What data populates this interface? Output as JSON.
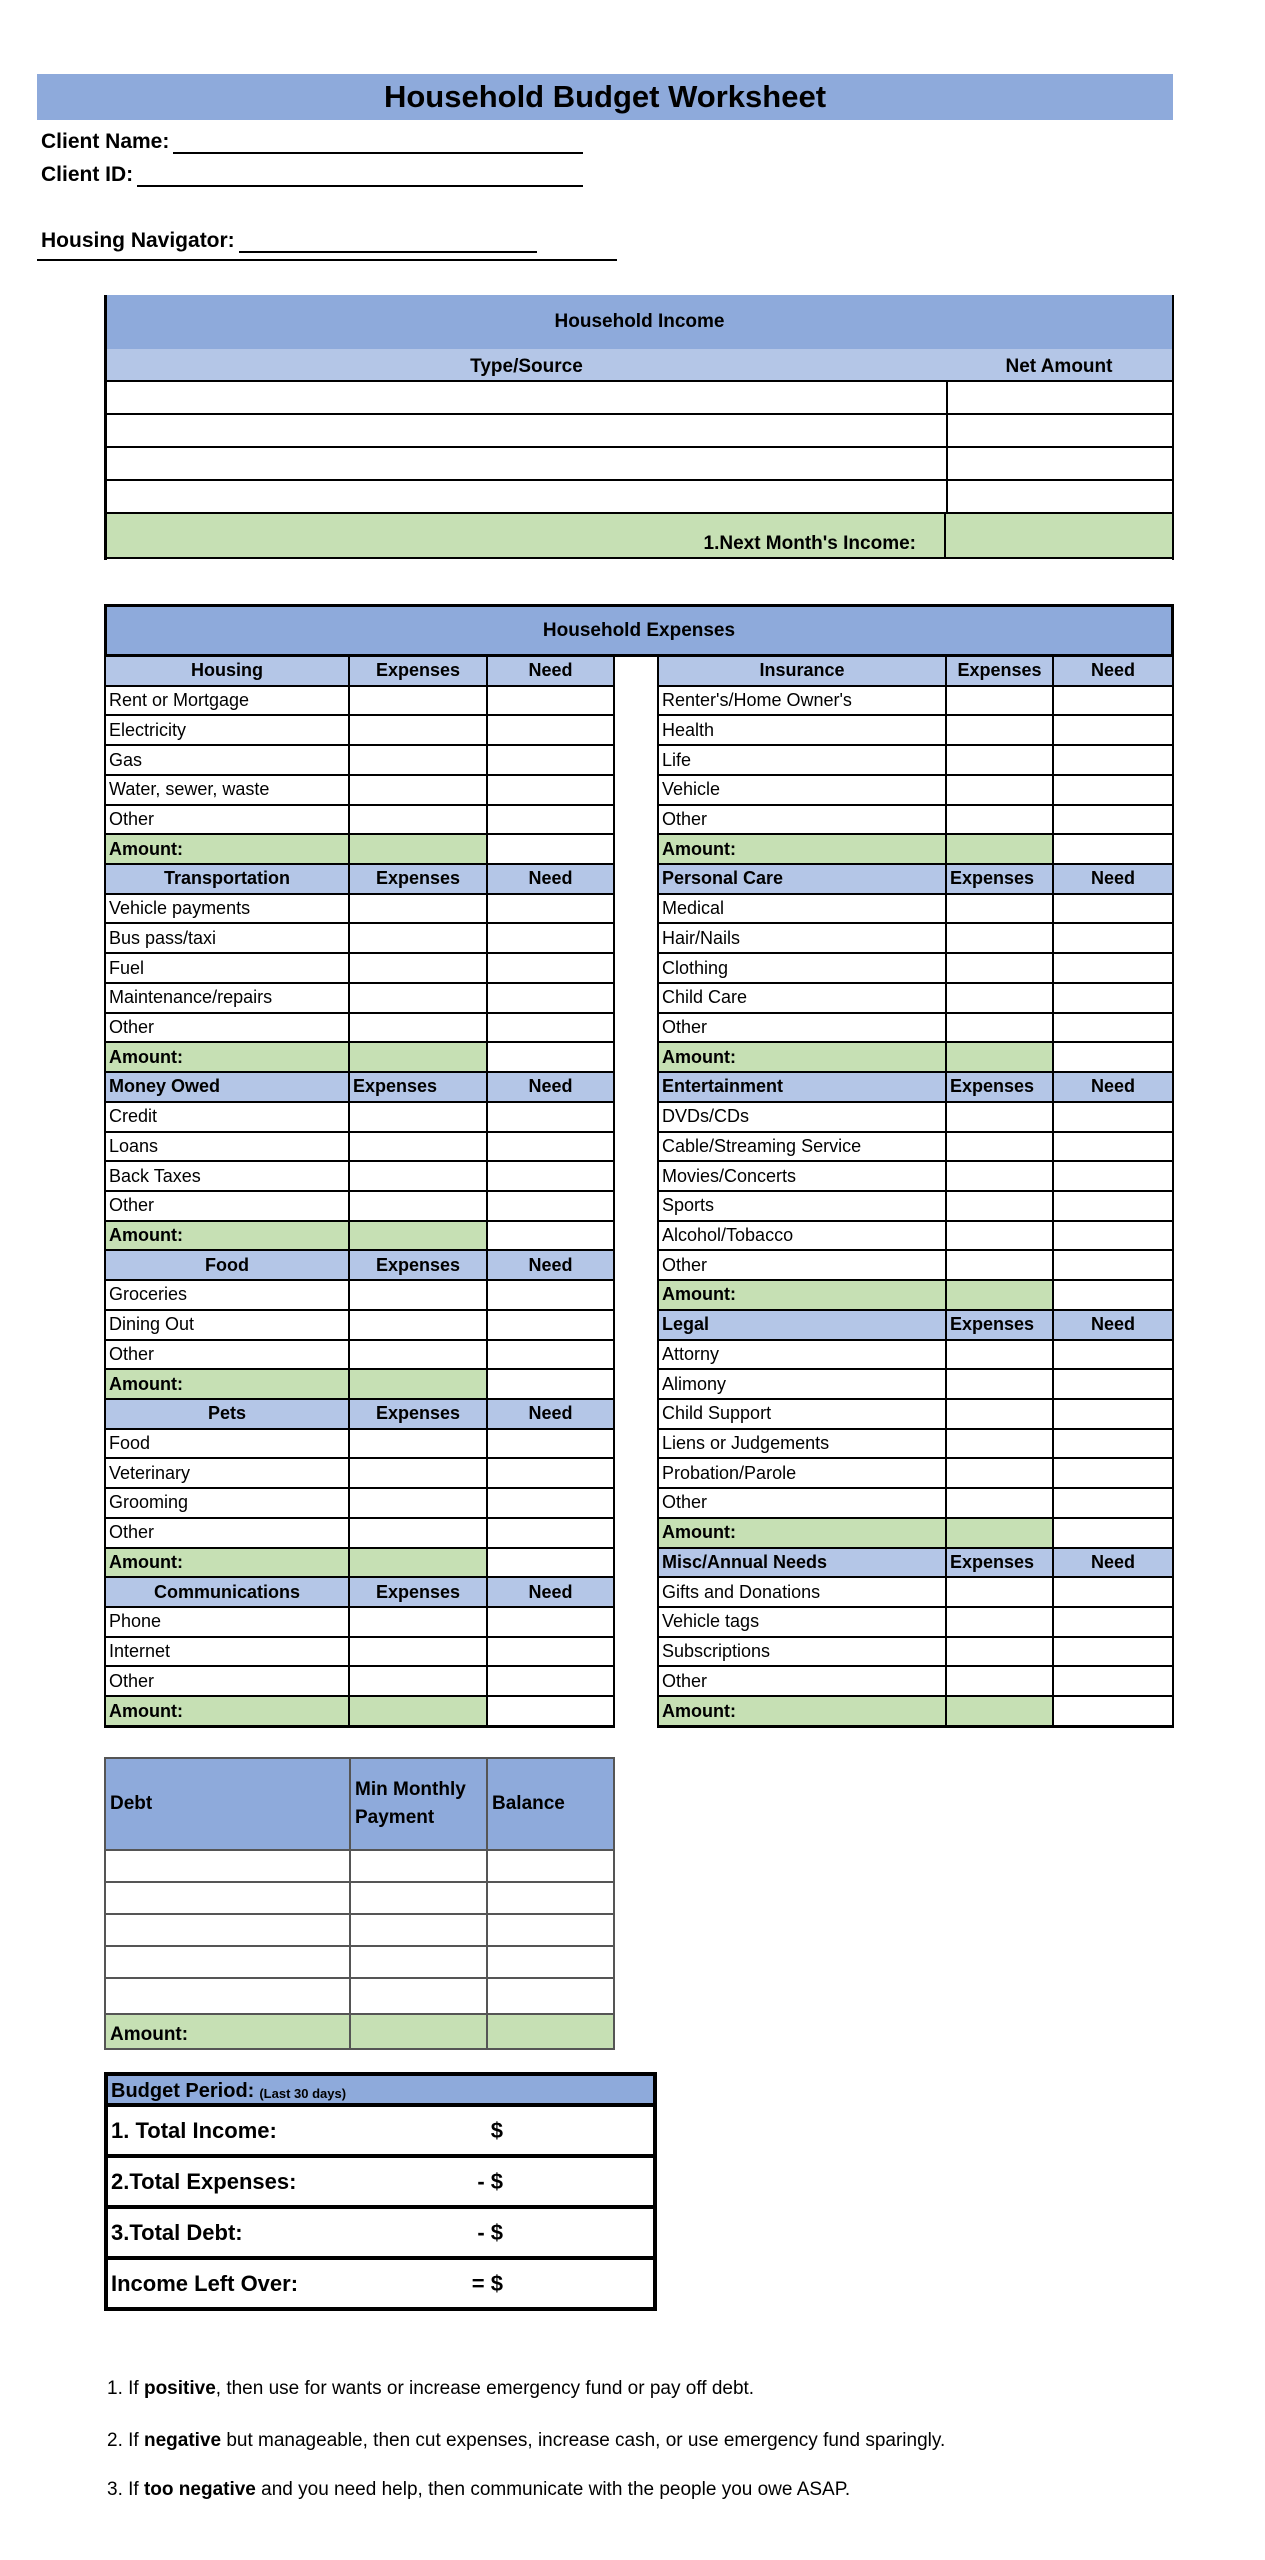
{
  "title": "Household Budget Worksheet",
  "client_name_label": "Client Name:",
  "client_id_label": "Client ID:",
  "housing_navigator_label": "Housing Navigator:",
  "income": {
    "title": "Household Income",
    "col_type": "Type/Source",
    "col_amount": "Net Amount",
    "total_label": "1.Next Month's Income:"
  },
  "expenses": {
    "title": "Household Expenses",
    "amount_label": "Amount:",
    "left": [
      {
        "name": "Housing",
        "expenses": "Expenses",
        "need": "Need",
        "align": "center",
        "items": [
          "Rent or Mortgage",
          "Electricity",
          "Gas",
          "Water, sewer, waste",
          "Other"
        ]
      },
      {
        "name": "Transportation",
        "expenses": "Expenses",
        "need": "Need",
        "align": "center",
        "items": [
          "Vehicle payments",
          "Bus pass/taxi",
          "Fuel",
          "Maintenance/repairs",
          "Other"
        ]
      },
      {
        "name": "Money Owed",
        "expenses": "Expenses",
        "need": "Need",
        "align": "left",
        "items": [
          "Credit",
          "Loans",
          "Back Taxes",
          "Other"
        ]
      },
      {
        "name": "Food",
        "expenses": "Expenses",
        "need": "Need",
        "align": "center",
        "items": [
          "Groceries",
          "Dining Out",
          "Other"
        ]
      },
      {
        "name": "Pets",
        "expenses": "Expenses",
        "need": "Need",
        "align": "center",
        "items": [
          "Food",
          "Veterinary",
          "Grooming",
          "Other"
        ]
      },
      {
        "name": "Communications",
        "expenses": "Expenses",
        "need": "Need",
        "align": "center",
        "items": [
          "Phone",
          "Internet",
          "Other"
        ]
      }
    ],
    "right": [
      {
        "name": "Insurance",
        "expenses": "Expenses",
        "need": "Need",
        "align": "center",
        "items": [
          "Renter's/Home Owner's",
          "Health",
          "Life",
          "Vehicle",
          "Other"
        ]
      },
      {
        "name": "Personal Care",
        "expenses": "Expenses",
        "need": "Need",
        "align": "left",
        "items": [
          "Medical",
          "Hair/Nails",
          "Clothing",
          "Child Care",
          "Other"
        ]
      },
      {
        "name": "Entertainment",
        "expenses": "Expenses",
        "need": "Need",
        "align": "left",
        "items": [
          "DVDs/CDs",
          "Cable/Streaming Service",
          "Movies/Concerts",
          "Sports",
          "Alcohol/Tobacco",
          "Other"
        ]
      },
      {
        "name": "Legal",
        "expenses": "Expenses",
        "need": "Need",
        "align": "left",
        "items": [
          "Attorny",
          "Alimony",
          "Child Support",
          "Liens or Judgements",
          "Probation/Parole",
          "Other"
        ]
      },
      {
        "name": "Misc/Annual Needs",
        "expenses": "Expenses",
        "need": "Need",
        "align": "left",
        "items": [
          "Gifts and Donations",
          "Vehicle tags",
          "Subscriptions",
          "Other"
        ]
      }
    ]
  },
  "debt": {
    "col_debt": "Debt",
    "col_min_line1": "Min Monthly",
    "col_min_line2": "Payment",
    "col_balance": "Balance",
    "total_label": "Amount:"
  },
  "budget": {
    "title": "Budget Period:",
    "subtitle": "(Last 30 days)",
    "rows": [
      {
        "label": "1. Total Income:",
        "symbol": "$"
      },
      {
        "label": "2.Total Expenses:",
        "symbol": "- $"
      },
      {
        "label": "3.Total Debt:",
        "symbol": "- $"
      },
      {
        "label": "Income Left Over:",
        "symbol": "= $"
      }
    ]
  },
  "notes": [
    {
      "prefix": "1. If ",
      "bold": "positive",
      "rest": ", then use for wants or increase emergency fund or pay off debt."
    },
    {
      "prefix": "2. If ",
      "bold": "negative",
      "rest": " but manageable, then cut expenses, increase cash, or use emergency fund sparingly."
    },
    {
      "prefix": "3. If ",
      "bold": "too negative",
      "rest": " and you need help, then communicate with the people you owe ASAP."
    }
  ],
  "colors": {
    "header": "#8eaadb",
    "subheader": "#b4c6e7",
    "total": "#c6e0b4"
  }
}
